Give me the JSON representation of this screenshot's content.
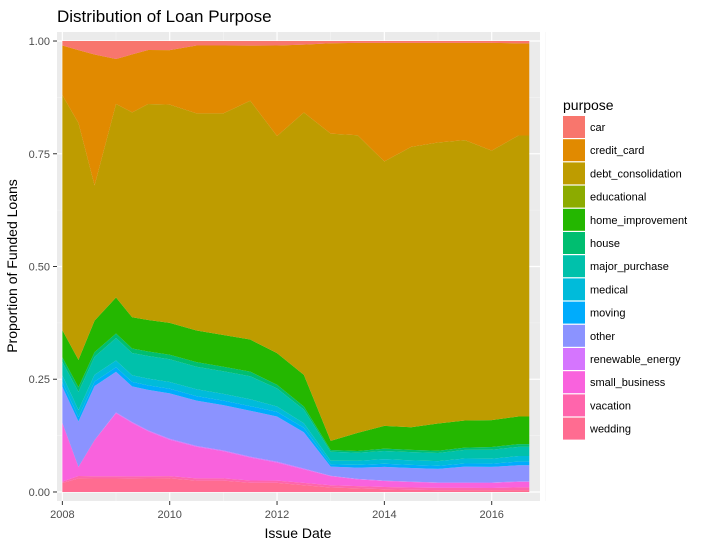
{
  "chart_data": {
    "type": "area",
    "title": "Distribution of Loan Purpose",
    "xlabel": "Issue Date",
    "ylabel": "Proportion of Funded Loans",
    "xlim": [
      2007.9,
      2016.9
    ],
    "ylim": [
      -0.02,
      1.02
    ],
    "x_ticks": [
      2008,
      2010,
      2012,
      2014,
      2016
    ],
    "y_ticks": [
      0,
      0.25,
      0.5,
      0.75,
      1.0
    ],
    "y_tick_labels": [
      "0.00",
      "0.25",
      "0.50",
      "0.75",
      "1.00"
    ],
    "grid": true,
    "stacking": "fill",
    "legend": {
      "title": "purpose",
      "position": "right",
      "entries": [
        {
          "name": "car",
          "color": "#F8766D"
        },
        {
          "name": "credit_card",
          "color": "#E18A00"
        },
        {
          "name": "debt_consolidation",
          "color": "#BE9C00"
        },
        {
          "name": "educational",
          "color": "#8CAB00"
        },
        {
          "name": "home_improvement",
          "color": "#24B700"
        },
        {
          "name": "house",
          "color": "#00BE70"
        },
        {
          "name": "major_purchase",
          "color": "#00C1AB"
        },
        {
          "name": "medical",
          "color": "#00BBDA"
        },
        {
          "name": "moving",
          "color": "#00ACFC"
        },
        {
          "name": "other",
          "color": "#8B93FF"
        },
        {
          "name": "renewable_energy",
          "color": "#D575FE"
        },
        {
          "name": "small_business",
          "color": "#F962DD"
        },
        {
          "name": "vacation",
          "color": "#FF65AC"
        },
        {
          "name": "wedding",
          "color": "#FF6C91"
        }
      ]
    },
    "x": [
      2008.0,
      2008.3,
      2008.6,
      2009.0,
      2009.3,
      2009.6,
      2010.0,
      2010.5,
      2011.0,
      2011.5,
      2012.0,
      2012.5,
      2013.0,
      2013.5,
      2014.0,
      2014.5,
      2015.0,
      2015.5,
      2016.0,
      2016.5,
      2016.7
    ],
    "series": [
      {
        "name": "wedding",
        "values": [
          0.02,
          0.03,
          0.03,
          0.03,
          0.03,
          0.03,
          0.03,
          0.025,
          0.025,
          0.02,
          0.02,
          0.015,
          0.01,
          0.008,
          0.006,
          0.005,
          0.004,
          0.004,
          0.004,
          0.004,
          0.004
        ]
      },
      {
        "name": "vacation",
        "values": [
          0.003,
          0.005,
          0.005,
          0.005,
          0.005,
          0.005,
          0.005,
          0.005,
          0.005,
          0.005,
          0.005,
          0.005,
          0.005,
          0.005,
          0.005,
          0.005,
          0.005,
          0.005,
          0.005,
          0.006,
          0.006
        ]
      },
      {
        "name": "small_business",
        "values": [
          0.13,
          0.02,
          0.08,
          0.14,
          0.12,
          0.1,
          0.08,
          0.07,
          0.06,
          0.05,
          0.04,
          0.03,
          0.02,
          0.015,
          0.013,
          0.012,
          0.011,
          0.011,
          0.011,
          0.012,
          0.012
        ]
      },
      {
        "name": "renewable_energy",
        "values": [
          0.0,
          0.0,
          0.0,
          0.002,
          0.002,
          0.002,
          0.002,
          0.002,
          0.002,
          0.002,
          0.002,
          0.002,
          0.001,
          0.001,
          0.001,
          0.001,
          0.001,
          0.001,
          0.001,
          0.001,
          0.001
        ]
      },
      {
        "name": "other",
        "values": [
          0.08,
          0.1,
          0.12,
          0.09,
          0.08,
          0.09,
          0.1,
          0.1,
          0.1,
          0.1,
          0.1,
          0.08,
          0.02,
          0.025,
          0.03,
          0.03,
          0.03,
          0.035,
          0.035,
          0.035,
          0.035
        ]
      },
      {
        "name": "moving",
        "values": [
          0.01,
          0.01,
          0.01,
          0.01,
          0.01,
          0.01,
          0.01,
          0.01,
          0.01,
          0.01,
          0.01,
          0.01,
          0.005,
          0.006,
          0.007,
          0.007,
          0.007,
          0.007,
          0.007,
          0.008,
          0.008
        ]
      },
      {
        "name": "medical",
        "values": [
          0.015,
          0.015,
          0.015,
          0.015,
          0.015,
          0.015,
          0.015,
          0.015,
          0.015,
          0.015,
          0.012,
          0.01,
          0.008,
          0.009,
          0.01,
          0.01,
          0.01,
          0.011,
          0.011,
          0.012,
          0.012
        ]
      },
      {
        "name": "major_purchase",
        "values": [
          0.03,
          0.04,
          0.04,
          0.05,
          0.05,
          0.05,
          0.05,
          0.05,
          0.05,
          0.05,
          0.04,
          0.03,
          0.02,
          0.018,
          0.018,
          0.018,
          0.018,
          0.019,
          0.02,
          0.02,
          0.02
        ]
      },
      {
        "name": "house",
        "values": [
          0.01,
          0.01,
          0.01,
          0.01,
          0.01,
          0.01,
          0.01,
          0.01,
          0.01,
          0.01,
          0.008,
          0.007,
          0.004,
          0.004,
          0.005,
          0.005,
          0.005,
          0.005,
          0.006,
          0.006,
          0.006
        ]
      },
      {
        "name": "home_improvement",
        "values": [
          0.06,
          0.06,
          0.07,
          0.08,
          0.07,
          0.07,
          0.07,
          0.07,
          0.07,
          0.07,
          0.07,
          0.07,
          0.02,
          0.04,
          0.05,
          0.05,
          0.06,
          0.06,
          0.06,
          0.06,
          0.06
        ]
      },
      {
        "name": "educational",
        "values": [
          0.0,
          0.0,
          0.0,
          0.0,
          0.0,
          0.0,
          0.0,
          0.0,
          0.0,
          0.0,
          0.0,
          0.0,
          0.0,
          0.0,
          0.0,
          0.0,
          0.0,
          0.0,
          0.0,
          0.0,
          0.0
        ]
      },
      {
        "name": "debt_consolidation",
        "values": [
          0.52,
          0.52,
          0.3,
          0.43,
          0.46,
          0.48,
          0.48,
          0.48,
          0.49,
          0.52,
          0.48,
          0.58,
          0.68,
          0.66,
          0.58,
          0.62,
          0.62,
          0.62,
          0.6,
          0.61,
          0.61
        ]
      },
      {
        "name": "credit_card",
        "values": [
          0.11,
          0.16,
          0.29,
          0.1,
          0.13,
          0.12,
          0.12,
          0.15,
          0.15,
          0.12,
          0.2,
          0.15,
          0.2,
          0.205,
          0.26,
          0.23,
          0.22,
          0.215,
          0.24,
          0.2,
          0.2
        ]
      },
      {
        "name": "car",
        "values": [
          0.01,
          0.02,
          0.03,
          0.04,
          0.03,
          0.02,
          0.02,
          0.01,
          0.01,
          0.01,
          0.01,
          0.008,
          0.005,
          0.004,
          0.004,
          0.004,
          0.004,
          0.004,
          0.004,
          0.005,
          0.005
        ]
      }
    ]
  }
}
